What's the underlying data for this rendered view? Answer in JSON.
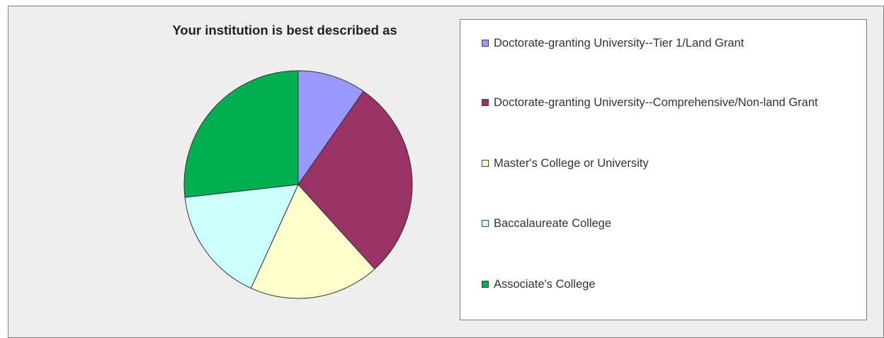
{
  "chart_data": {
    "type": "pie",
    "title": "Your institution is best described as",
    "slices": [
      {
        "label": "Doctorate-granting University--Tier 1/Land Grant",
        "value": 9.7,
        "color": "#9999ff"
      },
      {
        "label": "Doctorate-granting University--Comprehensive/Non-land Grant",
        "value": 28.6,
        "color": "#993366"
      },
      {
        "label": "Master's College or University",
        "value": 18.5,
        "color": "#ffffcc"
      },
      {
        "label": "Baccalaureate College",
        "value": 16.4,
        "color": "#ccffff"
      },
      {
        "label": "Associate's College",
        "value": 26.8,
        "color": "#00b050"
      }
    ],
    "legend_position": "right",
    "start_angle_deg": 0,
    "direction": "clockwise"
  }
}
